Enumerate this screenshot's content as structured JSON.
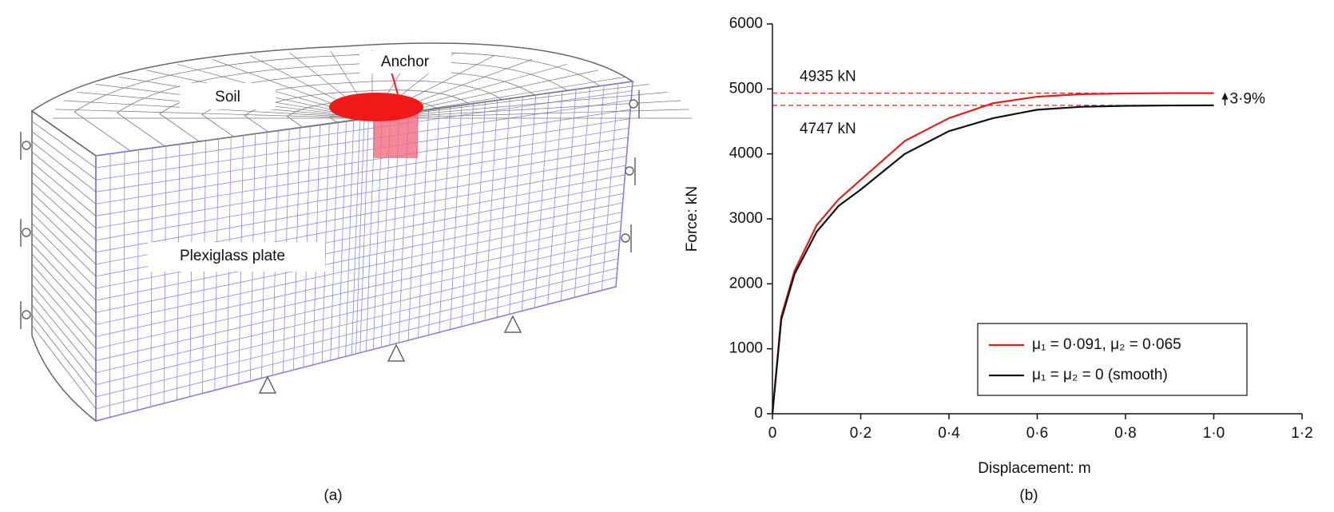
{
  "figure_a": {
    "labels": {
      "soil": "Soil",
      "anchor": "Anchor",
      "plate": "Plexiglass plate"
    },
    "caption": "(a)"
  },
  "chart_data": {
    "type": "line",
    "caption": "(b)",
    "x_label": "Displacement: m",
    "y_label": "Force: kN",
    "x": [
      0,
      0.02,
      0.05,
      0.1,
      0.15,
      0.2,
      0.3,
      0.4,
      0.5,
      0.6,
      0.7,
      0.8,
      0.9,
      1.0
    ],
    "series": [
      {
        "name": "μ₁ = 0·091, μ₂ = 0·065",
        "color": "#e0201b",
        "values": [
          0,
          1500,
          2200,
          2900,
          3300,
          3600,
          4200,
          4550,
          4780,
          4880,
          4920,
          4930,
          4935,
          4935
        ]
      },
      {
        "name": "μ₁ = μ₂ = 0 (smooth)",
        "color": "#111111",
        "values": [
          0,
          1450,
          2150,
          2800,
          3200,
          3450,
          4000,
          4350,
          4550,
          4680,
          4725,
          4740,
          4745,
          4747
        ]
      }
    ],
    "hlines": [
      {
        "value": 4935,
        "label": "4935 kN"
      },
      {
        "value": 4747,
        "label": "4747 kN"
      }
    ],
    "annotation": "3·9%",
    "xlim": [
      0,
      1.2
    ],
    "xticks": [
      0,
      {
        "value": 0.2,
        "label": "0·2"
      },
      {
        "value": 0.4,
        "label": "0·4"
      },
      {
        "value": 0.6,
        "label": "0·6"
      },
      {
        "value": 0.8,
        "label": "0·8"
      },
      {
        "value": 1.0,
        "label": "1·0"
      },
      {
        "value": 1.2,
        "label": "1·2"
      }
    ],
    "ylim": [
      0,
      6000
    ],
    "yticks": [
      0,
      1000,
      2000,
      3000,
      4000,
      5000,
      6000
    ],
    "legend": "lower-right"
  }
}
